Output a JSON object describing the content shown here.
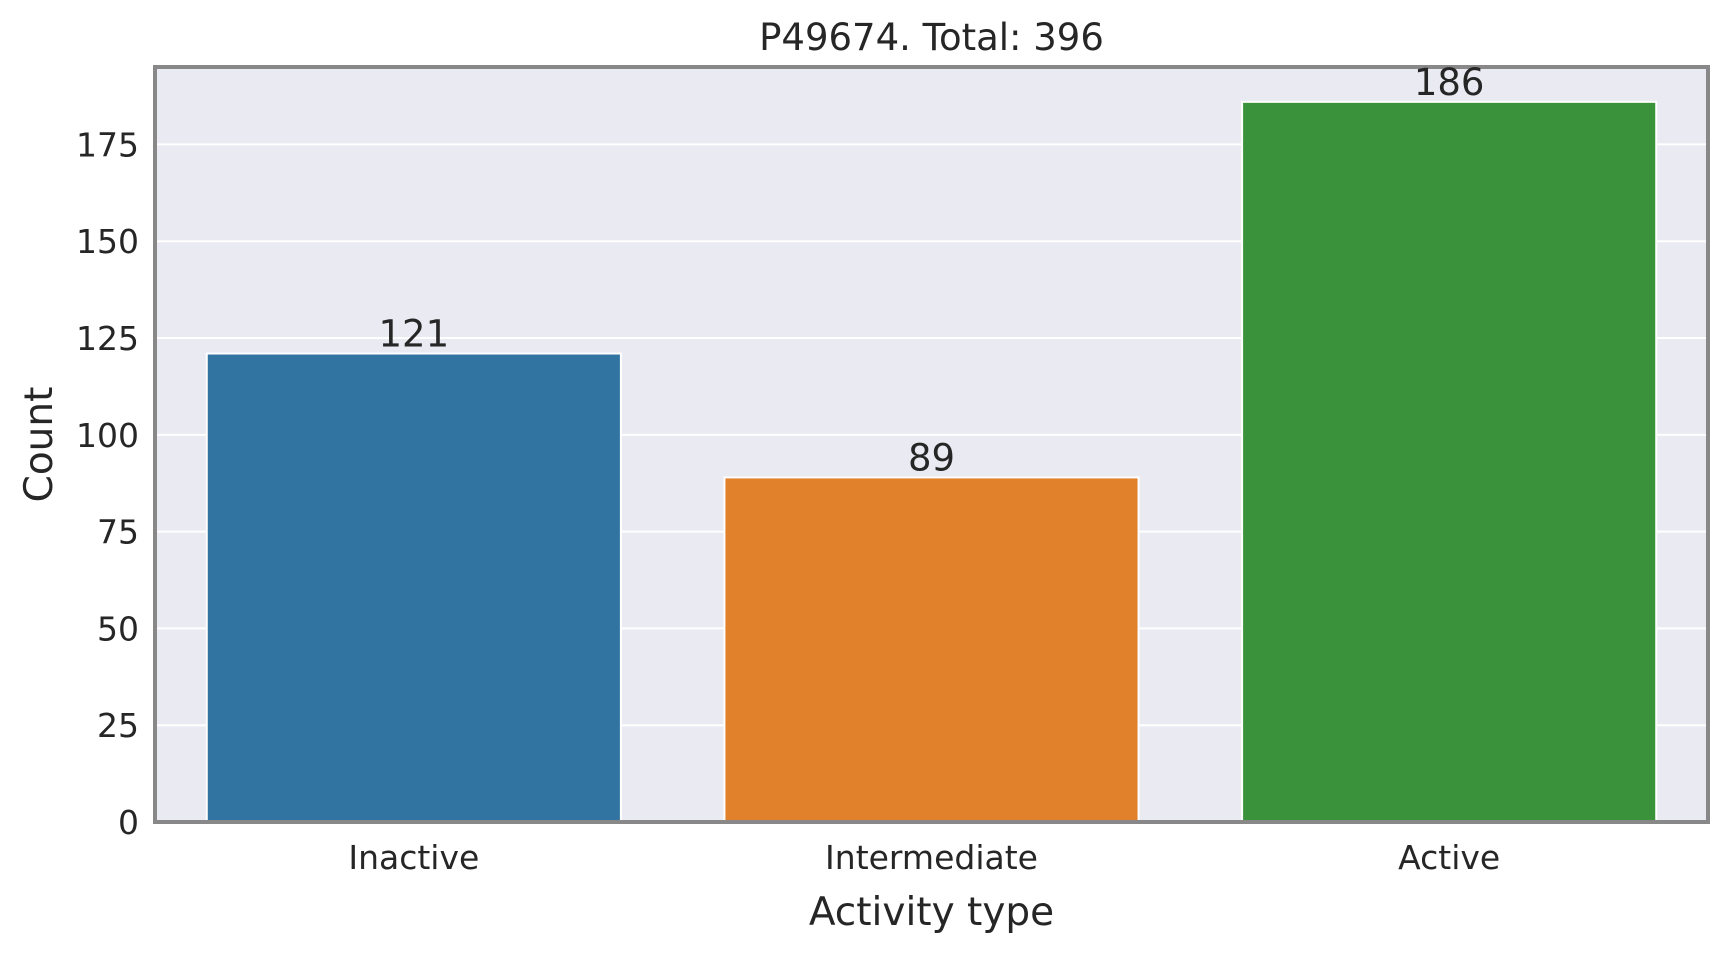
{
  "chart_data": {
    "type": "bar",
    "title": "P49674. Total: 396",
    "xlabel": "Activity type",
    "ylabel": "Count",
    "categories": [
      "Inactive",
      "Intermediate",
      "Active"
    ],
    "values": [
      121,
      89,
      186
    ],
    "data_labels": [
      "121",
      "89",
      "186"
    ],
    "colors": [
      "#3274a1",
      "#e1812c",
      "#3a923a"
    ],
    "ylim": [
      0,
      195
    ],
    "yticks": [
      0,
      25,
      50,
      75,
      100,
      125,
      150,
      175
    ],
    "ytick_labels": [
      "0",
      "25",
      "50",
      "75",
      "100",
      "125",
      "150",
      "175"
    ],
    "grid": true,
    "legend": "none",
    "style": {
      "plot_background": "#eaeaf2",
      "grid_color": "#ffffff",
      "frame_color": "#888888",
      "text_color": "#262626"
    }
  }
}
